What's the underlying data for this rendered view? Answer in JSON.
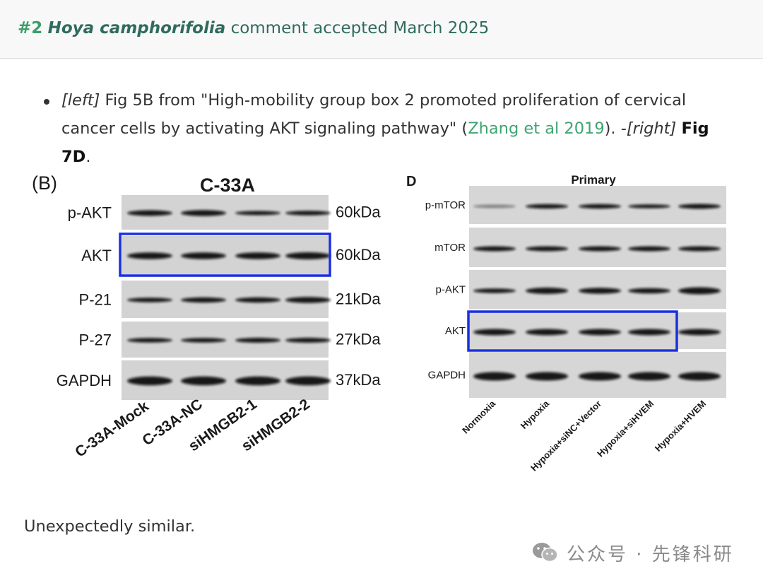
{
  "header": {
    "number": "#2",
    "species": "Hoya camphorifolia",
    "status": "comment accepted March 2025"
  },
  "bullet": {
    "left_tag": "[left]",
    "part1": " Fig 5B from \"High-mobility group box 2 promoted proliferation of cervical cancer cells by activating AKT signaling pathway\" (",
    "citation": "Zhang et al 2019",
    "part2": "). -",
    "right_tag": "[right]",
    "part3": " ",
    "fig_ref": "Fig 7D",
    "part4": "."
  },
  "figure_left": {
    "panel_label": "(B)",
    "title": "C-33A",
    "row_labels": [
      "p-AKT",
      "AKT",
      "P-21",
      "P-27",
      "GAPDH"
    ],
    "kda_labels": [
      "60kDa",
      "60kDa",
      "21kDa",
      "27kDa",
      "37kDa"
    ],
    "lane_labels": [
      "C-33A-Mock",
      "C-33A-NC",
      "siHMGB2-1",
      "siHMGB2-2"
    ],
    "highlighted_row": "AKT",
    "highlight_color": "#1a2fe0"
  },
  "figure_right": {
    "panel_label": "D",
    "title": "Primary",
    "row_labels": [
      "p-mTOR",
      "mTOR",
      "p-AKT",
      "AKT",
      "GAPDH"
    ],
    "lane_labels": [
      "Normoxia",
      "Hypoxia",
      "Hypoxia+siNC+Vector",
      "Hypoxia+siHVEM",
      "Hypoxia+HVEM"
    ],
    "highlighted_row": "AKT",
    "highlight_color": "#1a2fe0"
  },
  "footer": {
    "text": "Unexpectedly similar."
  },
  "watermark": {
    "icon": "wechat-icon",
    "text": "公众号 · 先锋科研"
  }
}
